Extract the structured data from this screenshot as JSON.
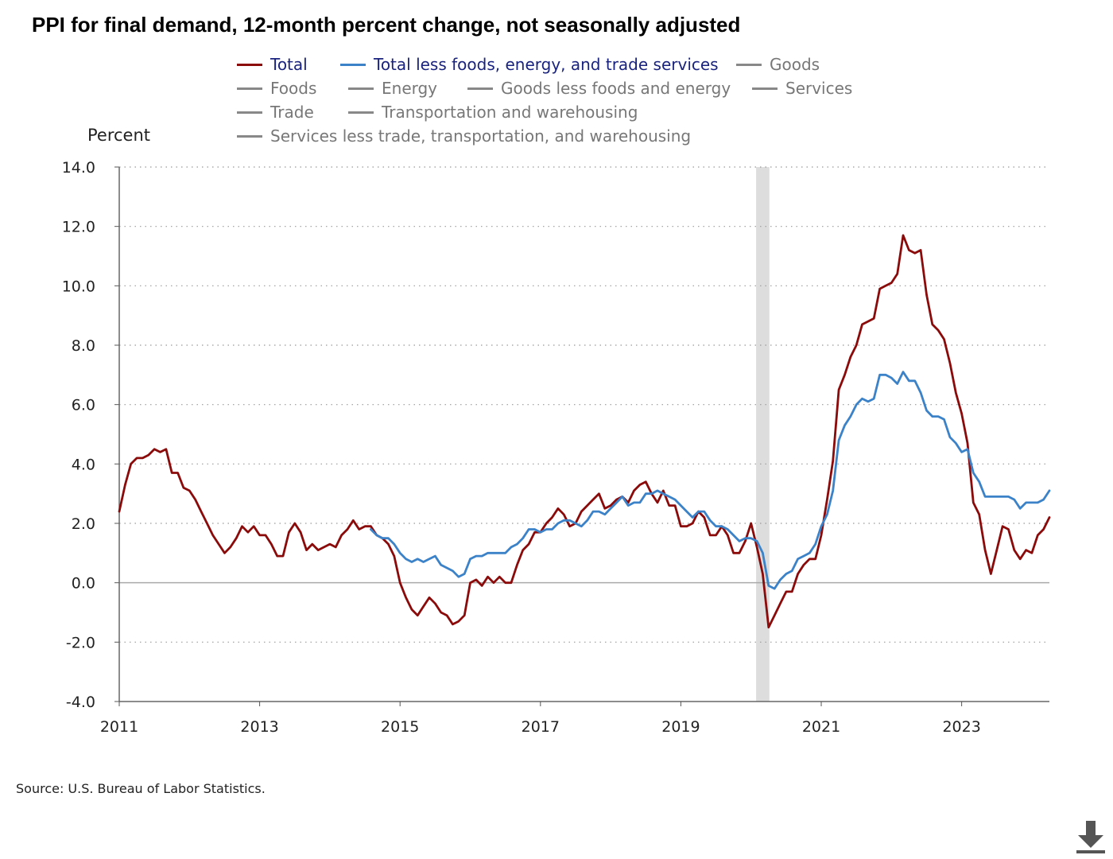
{
  "title": "PPI for final demand, 12-month percent change, not seasonally adjusted",
  "legend": {
    "items": [
      {
        "label": "Total",
        "color": "#8b0a0a",
        "state": "active"
      },
      {
        "label": "Total less foods, energy, and trade services",
        "color": "#3b82c8",
        "state": "active"
      },
      {
        "label": "Goods",
        "color": "#888888",
        "state": "inactive"
      },
      {
        "label": "Foods",
        "color": "#888888",
        "state": "inactive"
      },
      {
        "label": "Energy",
        "color": "#888888",
        "state": "inactive"
      },
      {
        "label": "Goods less foods and energy",
        "color": "#888888",
        "state": "inactive"
      },
      {
        "label": "Services",
        "color": "#888888",
        "state": "inactive"
      },
      {
        "label": "Trade",
        "color": "#888888",
        "state": "inactive"
      },
      {
        "label": "Transportation and warehousing",
        "color": "#888888",
        "state": "inactive"
      },
      {
        "label": "Services less trade, transportation, and warehousing",
        "color": "#888888",
        "state": "inactive"
      }
    ]
  },
  "y_axis_label": "Percent",
  "source": "Source: U.S. Bureau of Labor Statistics.",
  "download_icon": "download-arrow-icon",
  "chart_data": {
    "type": "line",
    "title": "PPI for final demand, 12-month percent change, not seasonally adjusted",
    "ylabel": "Percent",
    "xlabel": "",
    "x_start": "2011-01",
    "x_end": "2024-04",
    "xlim": [
      "2011-01",
      "2024-04"
    ],
    "ylim": [
      -4,
      14
    ],
    "y_ticks": [
      "14.0",
      "12.0",
      "10.0",
      "8.0",
      "6.0",
      "4.0",
      "2.0",
      "0.0",
      "-2.0",
      "-4.0"
    ],
    "x_ticks": [
      "2011",
      "2013",
      "2015",
      "2017",
      "2019",
      "2021",
      "2023"
    ],
    "grid": "horizontal dotted",
    "recession_shading": {
      "start": "2020-02",
      "end": "2020-04",
      "color": "#dddddd"
    },
    "series": [
      {
        "name": "Total",
        "color": "#8b0a0a",
        "start": "2011-01",
        "values": [
          2.4,
          3.3,
          4.0,
          4.2,
          4.2,
          4.3,
          4.5,
          4.4,
          4.5,
          3.7,
          3.7,
          3.2,
          3.1,
          2.8,
          2.4,
          2.0,
          1.6,
          1.3,
          1.0,
          1.2,
          1.5,
          1.9,
          1.7,
          1.9,
          1.6,
          1.6,
          1.3,
          0.9,
          0.9,
          1.7,
          2.0,
          1.7,
          1.1,
          1.3,
          1.1,
          1.2,
          1.3,
          1.2,
          1.6,
          1.8,
          2.1,
          1.8,
          1.9,
          1.9,
          1.6,
          1.5,
          1.3,
          0.9,
          0.0,
          -0.5,
          -0.9,
          -1.1,
          -0.8,
          -0.5,
          -0.7,
          -1.0,
          -1.1,
          -1.4,
          -1.3,
          -1.1,
          0.0,
          0.1,
          -0.1,
          0.2,
          0.0,
          0.2,
          0.0,
          0.0,
          0.6,
          1.1,
          1.3,
          1.7,
          1.7,
          2.0,
          2.2,
          2.5,
          2.3,
          1.9,
          2.0,
          2.4,
          2.6,
          2.8,
          3.0,
          2.5,
          2.6,
          2.8,
          2.9,
          2.7,
          3.1,
          3.3,
          3.4,
          3.0,
          2.7,
          3.1,
          2.6,
          2.6,
          1.9,
          1.9,
          2.0,
          2.4,
          2.2,
          1.6,
          1.6,
          1.9,
          1.6,
          1.0,
          1.0,
          1.4,
          2.0,
          1.2,
          0.3,
          -1.5,
          -1.1,
          -0.7,
          -0.3,
          -0.3,
          0.3,
          0.6,
          0.8,
          0.8,
          1.6,
          2.8,
          4.1,
          6.5,
          7.0,
          7.6,
          8.0,
          8.7,
          8.8,
          8.9,
          9.9,
          10.0,
          10.1,
          10.4,
          11.7,
          11.2,
          11.1,
          11.2,
          9.7,
          8.7,
          8.5,
          8.2,
          7.4,
          6.4,
          5.7,
          4.7,
          2.7,
          2.3,
          1.1,
          0.3,
          1.1,
          1.9,
          1.8,
          1.1,
          0.8,
          1.1,
          1.0,
          1.6,
          1.8,
          2.2
        ]
      },
      {
        "name": "Total less foods, energy, and trade services",
        "color": "#3b82c8",
        "start": "2014-08",
        "values": [
          1.8,
          1.6,
          1.5,
          1.5,
          1.3,
          1.0,
          0.8,
          0.7,
          0.8,
          0.7,
          0.8,
          0.9,
          0.6,
          0.5,
          0.4,
          0.2,
          0.3,
          0.8,
          0.9,
          0.9,
          1.0,
          1.0,
          1.0,
          1.0,
          1.2,
          1.3,
          1.5,
          1.8,
          1.8,
          1.7,
          1.8,
          1.8,
          2.0,
          2.1,
          2.1,
          2.0,
          1.9,
          2.1,
          2.4,
          2.4,
          2.3,
          2.5,
          2.7,
          2.9,
          2.6,
          2.7,
          2.7,
          3.0,
          3.0,
          3.1,
          3.0,
          2.9,
          2.8,
          2.6,
          2.4,
          2.2,
          2.4,
          2.4,
          2.1,
          1.9,
          1.9,
          1.8,
          1.6,
          1.4,
          1.5,
          1.5,
          1.4,
          1.0,
          -0.1,
          -0.2,
          0.1,
          0.3,
          0.4,
          0.8,
          0.9,
          1.0,
          1.3,
          1.9,
          2.3,
          3.1,
          4.8,
          5.3,
          5.6,
          6.0,
          6.2,
          6.1,
          6.2,
          7.0,
          7.0,
          6.9,
          6.7,
          7.1,
          6.8,
          6.8,
          6.4,
          5.8,
          5.6,
          5.6,
          5.5,
          4.9,
          4.7,
          4.4,
          4.5,
          3.7,
          3.4,
          2.9,
          2.9,
          2.9,
          2.9,
          2.9,
          2.8,
          2.5,
          2.7,
          2.7,
          2.7,
          2.8,
          3.1
        ]
      }
    ]
  }
}
